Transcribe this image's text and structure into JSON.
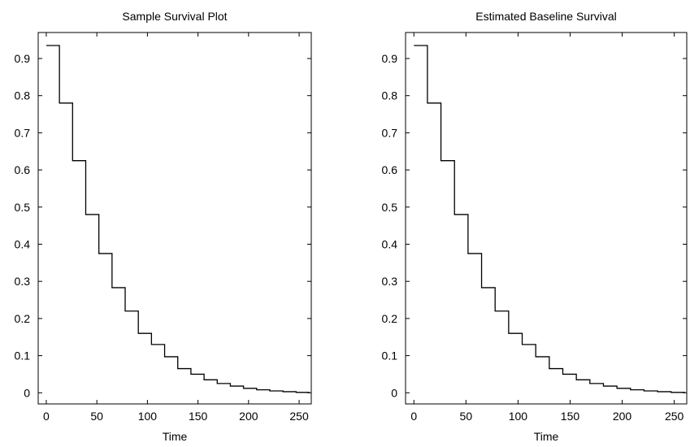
{
  "chart_data": [
    {
      "type": "line",
      "title": "Sample Survival Plot",
      "xlabel": "Time",
      "ylabel": "",
      "xlim": [
        -8,
        262
      ],
      "ylim": [
        -0.03,
        0.97
      ],
      "xticks": [
        0,
        50,
        100,
        150,
        200,
        250
      ],
      "yticks": [
        0,
        0.1,
        0.2,
        0.3,
        0.4,
        0.5,
        0.6,
        0.7,
        0.8,
        0.9
      ],
      "ytick_labels": [
        "0",
        "0.1",
        "0.2",
        "0.3",
        "0.4",
        "0.5",
        "0.6",
        "0.7",
        "0.8",
        "0.9"
      ],
      "grid": false,
      "series": [
        {
          "step": "post",
          "x": [
            0,
            13,
            26,
            39,
            52,
            65,
            78,
            91,
            104,
            117,
            130,
            143,
            156,
            169,
            182,
            195,
            208,
            221,
            234,
            247,
            260
          ],
          "y": [
            0.935,
            0.78,
            0.625,
            0.48,
            0.375,
            0.283,
            0.22,
            0.16,
            0.13,
            0.097,
            0.065,
            0.05,
            0.035,
            0.025,
            0.018,
            0.012,
            0.008,
            0.005,
            0.003,
            0.001,
            0.0
          ]
        }
      ]
    },
    {
      "type": "line",
      "title": "Estimated Baseline Survival",
      "xlabel": "Time",
      "ylabel": "",
      "xlim": [
        -8,
        262
      ],
      "ylim": [
        -0.03,
        0.97
      ],
      "xticks": [
        0,
        50,
        100,
        150,
        200,
        250
      ],
      "yticks": [
        0,
        0.1,
        0.2,
        0.3,
        0.4,
        0.5,
        0.6,
        0.7,
        0.8,
        0.9
      ],
      "ytick_labels": [
        "0",
        "0.1",
        "0.2",
        "0.3",
        "0.4",
        "0.5",
        "0.6",
        "0.7",
        "0.8",
        "0.9"
      ],
      "grid": false,
      "series": [
        {
          "step": "post",
          "x": [
            0,
            13,
            26,
            39,
            52,
            65,
            78,
            91,
            104,
            117,
            130,
            143,
            156,
            169,
            182,
            195,
            208,
            221,
            234,
            247,
            260
          ],
          "y": [
            0.935,
            0.78,
            0.625,
            0.48,
            0.375,
            0.283,
            0.22,
            0.16,
            0.13,
            0.097,
            0.065,
            0.05,
            0.035,
            0.025,
            0.018,
            0.012,
            0.008,
            0.005,
            0.003,
            0.001,
            0.0
          ]
        }
      ]
    }
  ]
}
